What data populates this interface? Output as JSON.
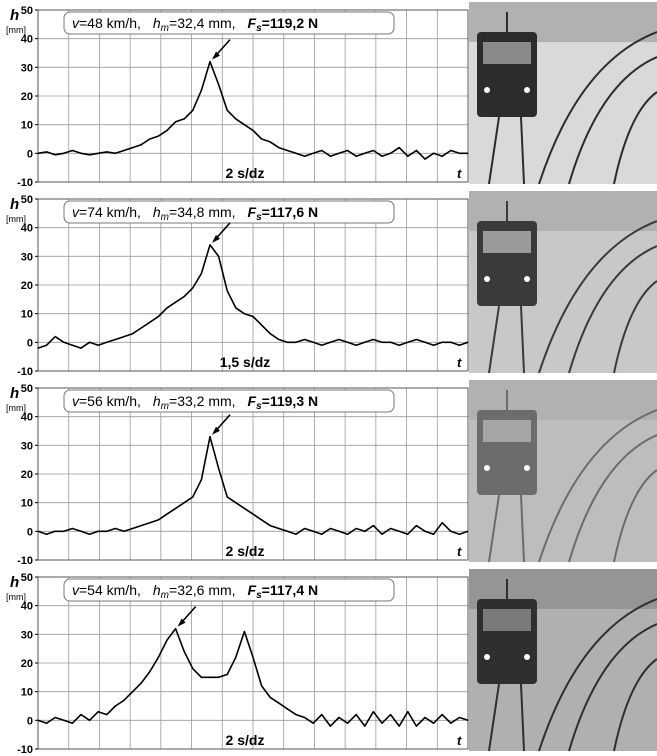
{
  "chart_data": [
    {
      "type": "line",
      "ylabel": "h",
      "yunit": "[mm]",
      "xlabel": "t",
      "ylim": [
        -10,
        50
      ],
      "yticks": [
        -10,
        0,
        10,
        20,
        30,
        40,
        50
      ],
      "grid": true,
      "annotation": {
        "v_label": "v",
        "v_value": "=48 km/h,",
        "h_label": "h",
        "h_sub": "m",
        "h_value": "=32,4 mm,",
        "f_label": "F",
        "f_sub": "s",
        "f_value": "=119,2 N"
      },
      "scale_label": "2 s/dz",
      "peak_index": 0,
      "series": [
        {
          "x": [
            0,
            1,
            2,
            3,
            4,
            5,
            6,
            7,
            8,
            9,
            10,
            11,
            12,
            13,
            14,
            15,
            16,
            17,
            18,
            19,
            20,
            21,
            22,
            23,
            24,
            25,
            26,
            27,
            28,
            29,
            30,
            31,
            32,
            33,
            34,
            35,
            36,
            37,
            38,
            39,
            40,
            41,
            42,
            43,
            44,
            45,
            46,
            47,
            48,
            49,
            50
          ],
          "values": [
            0,
            0.5,
            -0.5,
            0,
            1,
            0,
            -0.5,
            0,
            0.5,
            0,
            1,
            2,
            3,
            5,
            6,
            8,
            11,
            12,
            15,
            22,
            32,
            24,
            15,
            12,
            10,
            8,
            5,
            4,
            2,
            1,
            0,
            -1,
            0,
            1,
            -1,
            0,
            1,
            -1,
            0,
            1,
            -1,
            0,
            2,
            -1,
            1,
            -2,
            0,
            -1,
            1,
            0,
            0
          ]
        }
      ],
      "photo": {
        "palette": [
          "#2c2c2c",
          "#d9d9d9",
          "#8a8a8a"
        ],
        "scene": "snowy track, train approaching"
      }
    },
    {
      "type": "line",
      "ylabel": "h",
      "yunit": "[mm]",
      "xlabel": "t",
      "ylim": [
        -10,
        50
      ],
      "yticks": [
        -10,
        0,
        10,
        20,
        30,
        40,
        50
      ],
      "grid": true,
      "annotation": {
        "v_label": "v",
        "v_value": "=74 km/h,",
        "h_label": "h",
        "h_sub": "m",
        "h_value": "=34,8 mm,",
        "f_label": "F",
        "f_sub": "s",
        "f_value": "=117,6 N"
      },
      "scale_label": "1,5 s/dz",
      "peak_index": 0,
      "series": [
        {
          "x": [
            0,
            1,
            2,
            3,
            4,
            5,
            6,
            7,
            8,
            9,
            10,
            11,
            12,
            13,
            14,
            15,
            16,
            17,
            18,
            19,
            20,
            21,
            22,
            23,
            24,
            25,
            26,
            27,
            28,
            29,
            30,
            31,
            32,
            33,
            34,
            35,
            36,
            37,
            38,
            39,
            40,
            41,
            42,
            43,
            44,
            45,
            46,
            47,
            48,
            49,
            50
          ],
          "values": [
            -2,
            -1,
            2,
            0,
            -1,
            -2,
            0,
            -1,
            0,
            1,
            2,
            3,
            5,
            7,
            9,
            12,
            14,
            16,
            19,
            24,
            34,
            30,
            18,
            12,
            10,
            9,
            6,
            3,
            1,
            0,
            0,
            1,
            0,
            -1,
            0,
            1,
            0,
            -1,
            0,
            1,
            0,
            0,
            -1,
            0,
            1,
            0,
            -1,
            0,
            0,
            -1,
            0
          ]
        }
      ],
      "photo": {
        "palette": [
          "#3a3a3a",
          "#c8c8c8",
          "#9a9a9a"
        ],
        "scene": "curved track, train approaching"
      }
    },
    {
      "type": "line",
      "ylabel": "h",
      "yunit": "[mm]",
      "xlabel": "t",
      "ylim": [
        -10,
        50
      ],
      "yticks": [
        -10,
        0,
        10,
        20,
        30,
        40,
        50
      ],
      "grid": true,
      "annotation": {
        "v_label": "v",
        "v_value": "=56 km/h,",
        "h_label": "h",
        "h_sub": "m",
        "h_value": "=33,2 mm,",
        "f_label": "F",
        "f_sub": "s",
        "f_value": "=119,3 N"
      },
      "scale_label": "2 s/dz",
      "peak_index": 0,
      "series": [
        {
          "x": [
            0,
            1,
            2,
            3,
            4,
            5,
            6,
            7,
            8,
            9,
            10,
            11,
            12,
            13,
            14,
            15,
            16,
            17,
            18,
            19,
            20,
            21,
            22,
            23,
            24,
            25,
            26,
            27,
            28,
            29,
            30,
            31,
            32,
            33,
            34,
            35,
            36,
            37,
            38,
            39,
            40,
            41,
            42,
            43,
            44,
            45,
            46,
            47,
            48,
            49,
            50
          ],
          "values": [
            0,
            -1,
            0,
            0,
            1,
            0,
            -1,
            0,
            0,
            1,
            0,
            1,
            2,
            3,
            4,
            6,
            8,
            10,
            12,
            18,
            33,
            22,
            12,
            10,
            8,
            6,
            4,
            2,
            1,
            0,
            -1,
            1,
            0,
            -1,
            1,
            0,
            -1,
            1,
            0,
            2,
            -1,
            1,
            0,
            -1,
            2,
            0,
            -1,
            3,
            0,
            -1,
            0
          ]
        }
      ],
      "photo": {
        "palette": [
          "#6c6c6c",
          "#bdbdbd",
          "#a5a5a5"
        ],
        "scene": "foggy track, train approaching"
      }
    },
    {
      "type": "line",
      "ylabel": "h",
      "yunit": "[mm]",
      "xlabel": "t",
      "ylim": [
        -10,
        50
      ],
      "yticks": [
        -10,
        0,
        10,
        20,
        30,
        40,
        50
      ],
      "grid": true,
      "annotation": {
        "v_label": "v",
        "v_value": "=54 km/h,",
        "h_label": "h",
        "h_sub": "m",
        "h_value": "=32,6 mm,",
        "f_label": "F",
        "f_sub": "s",
        "f_value": "=117,4 N"
      },
      "scale_label": "2 s/dz",
      "peak_index": 0,
      "series": [
        {
          "x": [
            0,
            1,
            2,
            3,
            4,
            5,
            6,
            7,
            8,
            9,
            10,
            11,
            12,
            13,
            14,
            15,
            16,
            17,
            18,
            19,
            20,
            21,
            22,
            23,
            24,
            25,
            26,
            27,
            28,
            29,
            30,
            31,
            32,
            33,
            34,
            35,
            36,
            37,
            38,
            39,
            40,
            41,
            42,
            43,
            44,
            45,
            46,
            47,
            48,
            49,
            50
          ],
          "values": [
            0,
            -1,
            1,
            0,
            -1,
            2,
            0,
            3,
            2,
            5,
            7,
            10,
            13,
            17,
            22,
            28,
            32,
            24,
            18,
            15,
            15,
            15,
            16,
            22,
            31,
            22,
            12,
            8,
            6,
            4,
            2,
            1,
            -1,
            2,
            -2,
            1,
            -1,
            2,
            -2,
            3,
            -1,
            2,
            -2,
            3,
            -2,
            1,
            -1,
            2,
            -1,
            1,
            0
          ]
        }
      ],
      "photo": {
        "palette": [
          "#2f2f2f",
          "#b0b0b0",
          "#7a7a7a"
        ],
        "scene": "station track, train approaching"
      }
    }
  ]
}
